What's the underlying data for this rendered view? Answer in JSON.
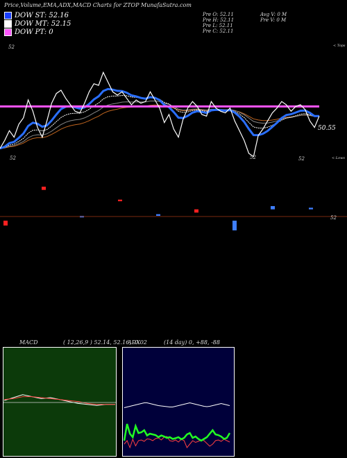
{
  "header": {
    "title": "Price,Volume,EMA,ADX,MACD Charts for ZTOP MunafaSutra.com"
  },
  "legend": [
    {
      "label": "DOW ST: 52.16",
      "color": "#1a3fff"
    },
    {
      "label": "DOW MT: 52.15",
      "color": "#ffffff"
    },
    {
      "label": "DOW PT: 0",
      "color": "#ff66ff"
    }
  ],
  "prev_col1": [
    "Pre   O: 52.11",
    "Pre   H: 52.11",
    "Pre   L: 52.11",
    "Pre   C: 52.11"
  ],
  "prev_col2": [
    "Avg V: 0   M",
    "Pre   V: 0   M"
  ],
  "colors": {
    "price_line": "#ffffff",
    "ema_short": "#2a6fff",
    "ema_long": "#ffffff",
    "dow_pt": "#ff55ff",
    "avg_line": "#c0651f",
    "volume_up": "#3f7fff",
    "volume_down": "#ff2020",
    "macd_bg": "#0c3a0a",
    "adx_bg": "#00003a",
    "adx_di_plus": "#22ff22",
    "adx_di_minus": "#ff4040"
  },
  "chart_data": [
    {
      "type": "line",
      "title": "",
      "price_labels": [
        "52",
        "52",
        "52",
        "52",
        "52",
        "50.55"
      ],
      "annotations": [
        "< Tops",
        "< Lows"
      ],
      "pt_level": 52.5,
      "price_series": [
        49.9,
        50.4,
        51.0,
        50.6,
        51.4,
        51.8,
        52.9,
        52.2,
        51.2,
        50.6,
        51.6,
        52.7,
        53.3,
        53.5,
        53.0,
        52.6,
        52.2,
        52.1,
        52.7,
        53.4,
        53.9,
        53.8,
        54.6,
        54.0,
        53.4,
        53.2,
        53.4,
        53.0,
        52.6,
        52.9,
        52.7,
        52.8,
        53.4,
        52.9,
        52.4,
        51.5,
        52.0,
        51.1,
        50.6,
        51.7,
        52.4,
        52.8,
        52.5,
        52.0,
        51.9,
        52.8,
        52.4,
        52.2,
        52.1,
        52.4,
        51.6,
        51.0,
        50.4,
        49.6,
        49.4,
        50.7,
        51.1,
        51.6,
        52.1,
        52.4,
        52.8,
        52.6,
        52.2,
        52.5,
        52.6,
        52.3,
        51.6,
        51.2,
        51.9
      ],
      "volume_bars": [
        {
          "up": false,
          "open": 52.3,
          "close": 52.0
        },
        {
          "up": false,
          "open": 54.4,
          "close": 54.2
        },
        {
          "up": true,
          "open": 52.6,
          "close": 52.5
        },
        {
          "up": false,
          "open": 53.6,
          "close": 53.5
        },
        {
          "up": true,
          "open": 52.7,
          "close": 52.6
        },
        {
          "up": false,
          "open": 53.0,
          "close": 52.8
        },
        {
          "up": true,
          "open": 52.3,
          "close": 51.7
        },
        {
          "up": true,
          "open": 53.2,
          "close": 53.0
        },
        {
          "up": true,
          "open": 53.1,
          "close": 53.0
        }
      ]
    },
    {
      "type": "line",
      "title": "MACD",
      "params": "( 12,26,9 ) 52.14,  52.16,  -0.02",
      "series": [
        {
          "name": "MACD",
          "values": [
            0.02,
            0.05,
            0.08,
            0.06,
            0.04,
            0.05,
            0.03,
            0.01,
            -0.01,
            -0.02,
            -0.03,
            -0.02,
            -0.02
          ]
        },
        {
          "name": "Signal",
          "values": [
            0.03,
            0.04,
            0.06,
            0.06,
            0.05,
            0.04,
            0.03,
            0.02,
            0.01,
            -0.01,
            -0.02,
            -0.02,
            -0.02
          ]
        }
      ]
    },
    {
      "type": "line",
      "title": "ADX",
      "params": "(14 day) 0,  +88,  -88",
      "series": [
        {
          "name": "DI+",
          "values": [
            40,
            88,
            60,
            50,
            82,
            62,
            64,
            70,
            55,
            60,
            58,
            56,
            50,
            55,
            52,
            48,
            50,
            45,
            47,
            50,
            44,
            48,
            58,
            62,
            48,
            52,
            45,
            40,
            45,
            50,
            60,
            70,
            58,
            56,
            52,
            45,
            48,
            62
          ]
        },
        {
          "name": "DI-",
          "values": [
            30,
            40,
            20,
            44,
            25,
            40,
            42,
            38,
            45,
            44,
            40,
            46,
            48,
            42,
            50,
            52,
            40,
            38,
            42,
            36,
            44,
            40,
            20,
            30,
            40,
            35,
            38,
            42,
            40,
            32,
            24,
            30,
            40,
            42,
            38,
            44,
            40,
            36
          ]
        },
        {
          "name": "ADX",
          "values": [
            10,
            12,
            14,
            16,
            18,
            20,
            22,
            24,
            24,
            22,
            20,
            18,
            16,
            15,
            14,
            13,
            12,
            12,
            14,
            16,
            18,
            20,
            22,
            24,
            22,
            20,
            18,
            16,
            14,
            13,
            14,
            16,
            18,
            20,
            22,
            20,
            18,
            16
          ]
        }
      ]
    }
  ]
}
